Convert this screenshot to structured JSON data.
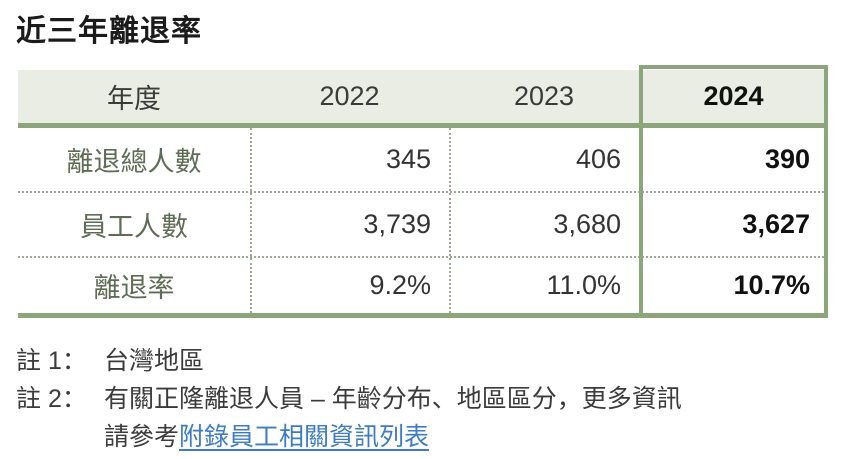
{
  "title": "近三年離退率",
  "table": {
    "header": [
      "年度",
      "2022",
      "2023",
      "2024"
    ],
    "highlight_year": "2024",
    "rows": [
      {
        "label": "離退總人數",
        "values": [
          "345",
          "406",
          "390"
        ]
      },
      {
        "label": "員工人數",
        "values": [
          "3,739",
          "3,680",
          "3,627"
        ]
      },
      {
        "label": "離退率",
        "values": [
          "9.2%",
          "11.0%",
          "10.7%"
        ]
      }
    ]
  },
  "notes": [
    {
      "label": "註 1：",
      "text": "台灣地區"
    },
    {
      "label": "註 2：",
      "text": "有關正隆離退人員 – 年齡分布、地區區分，更多資訊",
      "line2_prefix": "請參考",
      "link_text": "附錄員工相關資訊列表"
    }
  ],
  "colors": {
    "accent": "#8CA57B",
    "header_bg": "#E9EDE3",
    "label": "#5E6C55",
    "link": "#3D7CC1",
    "dotted": "#9DA895",
    "ink": "#333333",
    "ink_bold": "#111111"
  }
}
